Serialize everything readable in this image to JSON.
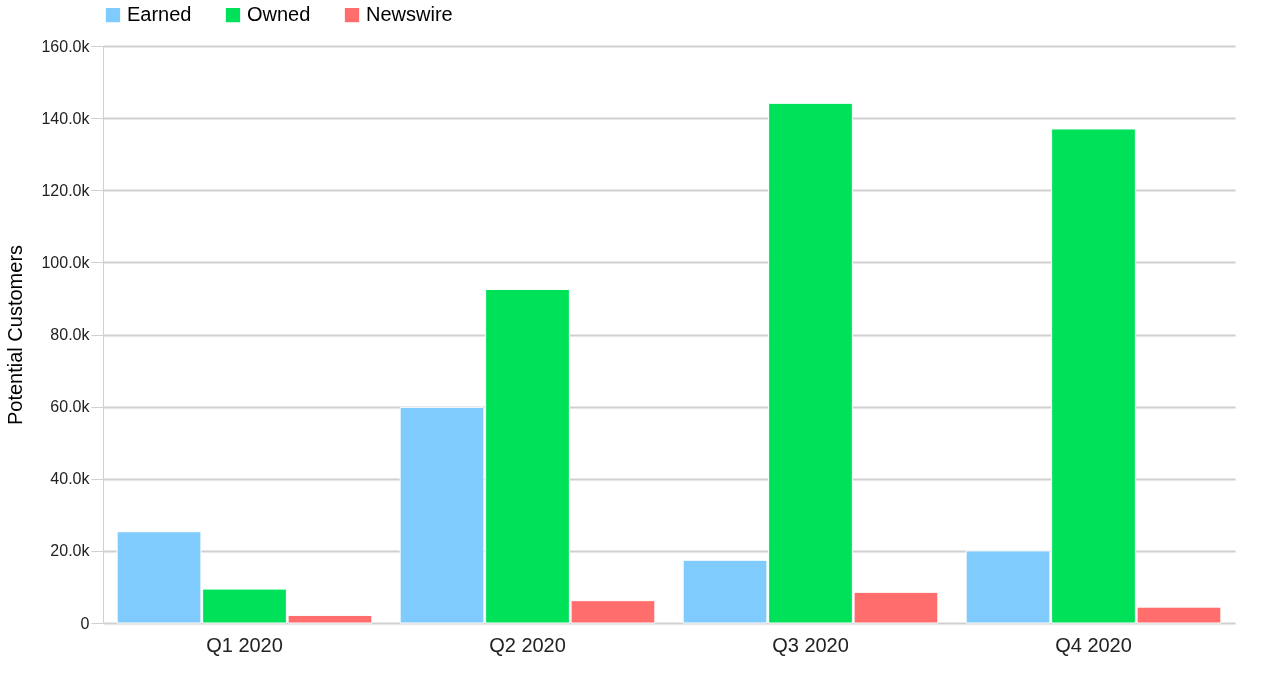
{
  "chart_data": {
    "type": "bar",
    "ylabel": "Potential Customers",
    "categories": [
      "Q1 2020",
      "Q2 2020",
      "Q3 2020",
      "Q4 2020"
    ],
    "series": [
      {
        "name": "Earned",
        "color": "#80cbfd",
        "values": [
          25300,
          59800,
          17400,
          20000
        ]
      },
      {
        "name": "Owned",
        "color": "#00e15a",
        "values": [
          9400,
          92500,
          144100,
          137000
        ]
      },
      {
        "name": "Newswire",
        "color": "#ff6d6d",
        "values": [
          2100,
          6200,
          8500,
          4400
        ]
      }
    ],
    "ylim": [
      0,
      160000
    ],
    "yticks": [
      {
        "value": 0,
        "label": "0"
      },
      {
        "value": 20000,
        "label": "20.0k"
      },
      {
        "value": 40000,
        "label": "40.0k"
      },
      {
        "value": 60000,
        "label": "60.0k"
      },
      {
        "value": 80000,
        "label": "80.0k"
      },
      {
        "value": 100000,
        "label": "100.0k"
      },
      {
        "value": 120000,
        "label": "120.0k"
      },
      {
        "value": 140000,
        "label": "140.0k"
      },
      {
        "value": 160000,
        "label": "160.0k"
      }
    ],
    "grid": "y",
    "legend": "top left"
  }
}
